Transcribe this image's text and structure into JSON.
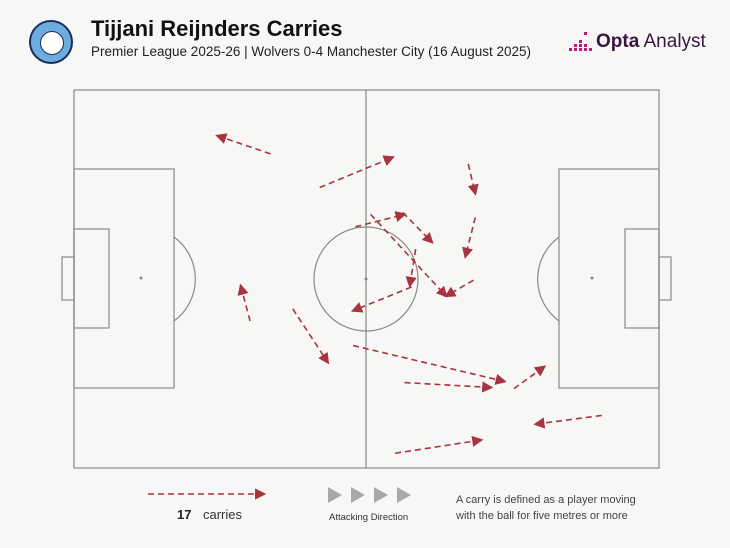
{
  "header": {
    "title": "Tijjani Reijnders Carries",
    "subtitle": "Premier League 2025-26 | Wolvers 0-4 Manchester City (16 August 2025)",
    "brand_bold": "Opta",
    "brand_rest": " Analyst",
    "badge_icon": "manchester-city-crest"
  },
  "colors": {
    "carry": "#a8343f",
    "pitch_line": "#8a8a8a",
    "brand": "#c2187a"
  },
  "chart_data": {
    "type": "scatter",
    "title": "Tijjani Reijnders Carries",
    "xlim": [
      0,
      100
    ],
    "ylim": [
      0,
      100
    ],
    "carries": [
      {
        "x1": 33.6,
        "y1": 16.9,
        "x2": 24.5,
        "y2": 12.1
      },
      {
        "x1": 42.0,
        "y1": 25.8,
        "x2": 54.5,
        "y2": 17.8
      },
      {
        "x1": 67.4,
        "y1": 19.6,
        "x2": 68.6,
        "y2": 27.4
      },
      {
        "x1": 48.1,
        "y1": 36.2,
        "x2": 56.5,
        "y2": 32.9
      },
      {
        "x1": 56.2,
        "y1": 32.4,
        "x2": 61.2,
        "y2": 40.3
      },
      {
        "x1": 68.6,
        "y1": 33.7,
        "x2": 66.9,
        "y2": 44.1
      },
      {
        "x1": 50.7,
        "y1": 32.9,
        "x2": 63.6,
        "y2": 54.5
      },
      {
        "x1": 58.4,
        "y1": 42.1,
        "x2": 57.4,
        "y2": 51.8
      },
      {
        "x1": 57.7,
        "y1": 52.1,
        "x2": 47.7,
        "y2": 58.4
      },
      {
        "x1": 68.3,
        "y1": 50.3,
        "x2": 63.6,
        "y2": 54.5
      },
      {
        "x1": 30.1,
        "y1": 61.1,
        "x2": 28.5,
        "y2": 51.8
      },
      {
        "x1": 37.4,
        "y1": 57.9,
        "x2": 43.4,
        "y2": 72.1
      },
      {
        "x1": 47.7,
        "y1": 67.6,
        "x2": 73.6,
        "y2": 77.1
      },
      {
        "x1": 56.5,
        "y1": 77.4,
        "x2": 71.3,
        "y2": 78.7
      },
      {
        "x1": 75.2,
        "y1": 79.0,
        "x2": 80.4,
        "y2": 73.2
      },
      {
        "x1": 90.2,
        "y1": 86.1,
        "x2": 78.9,
        "y2": 88.4
      },
      {
        "x1": 54.9,
        "y1": 96.1,
        "x2": 69.6,
        "y2": 92.6
      }
    ]
  },
  "legend": {
    "count": "17",
    "count_label": "carries",
    "attack_label": "Attacking Direction",
    "note": "A carry is defined as a player moving with the ball for five metres or more"
  }
}
